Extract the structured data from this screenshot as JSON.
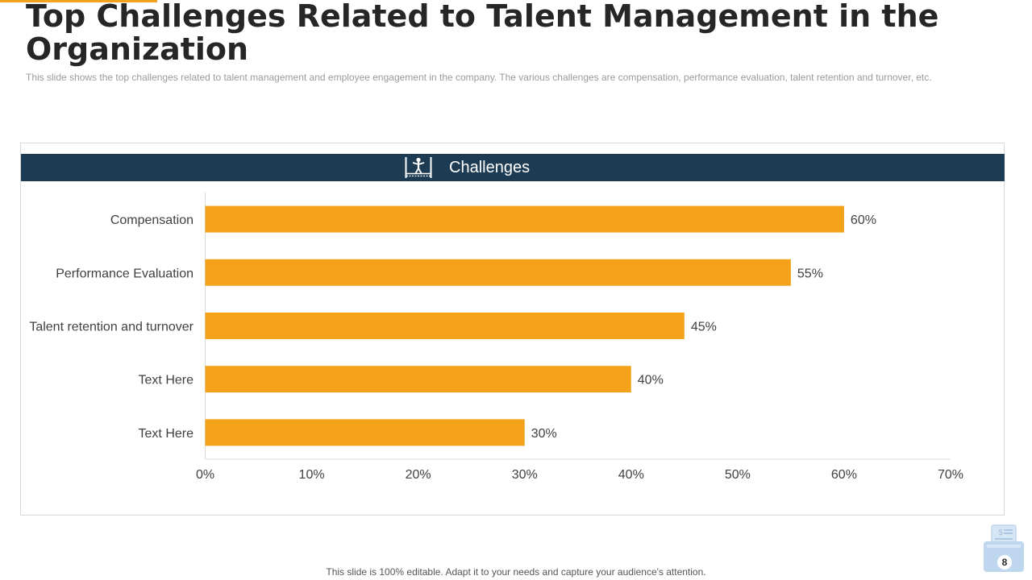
{
  "slide": {
    "title": "Top Challenges Related to Talent Management in the Organization",
    "subtitle": "This slide shows the top challenges related to talent management and employee engagement in the company. The various challenges are compensation, performance evaluation, talent retention and turnover, etc.",
    "footer": "This slide is 100% editable. Adapt it to your needs and capture your audience's attention.",
    "page_number": "8"
  },
  "chart_header": {
    "title": "Challenges",
    "icon": "tightrope-walker-icon"
  },
  "colors": {
    "bar": "#F5A21B",
    "header": "#1D3C54",
    "accent": "#F5A21B",
    "badge": "#BFD7EE"
  },
  "chart_data": {
    "type": "bar",
    "orientation": "horizontal",
    "categories": [
      "Compensation",
      "Performance Evaluation",
      "Talent retention and turnover",
      "Text Here",
      "Text Here"
    ],
    "values": [
      60,
      55,
      45,
      40,
      30
    ],
    "data_labels": [
      "60%",
      "55%",
      "45%",
      "40%",
      "30%"
    ],
    "xlim": [
      0,
      70
    ],
    "xticks": [
      0,
      10,
      20,
      30,
      40,
      50,
      60,
      70
    ],
    "xtick_labels": [
      "0%",
      "10%",
      "20%",
      "30%",
      "40%",
      "50%",
      "60%",
      "70%"
    ],
    "title": "Challenges",
    "grid": false,
    "legend": "none"
  }
}
